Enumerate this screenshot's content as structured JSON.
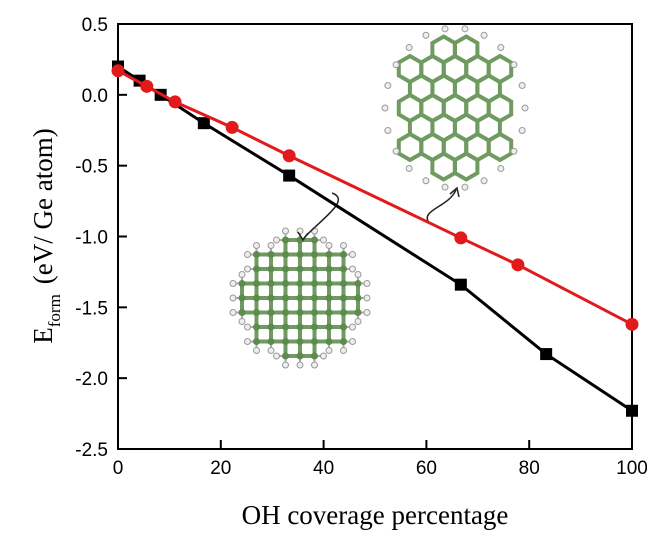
{
  "chart_data": {
    "type": "line",
    "xlabel": "OH coverage percentage",
    "ylabel": "E",
    "ylabel_sub": "form",
    "ylabel_unit": "(eV/ Ge atom)",
    "xlim": [
      0,
      100
    ],
    "xticks": [
      0,
      20,
      40,
      60,
      80,
      100
    ],
    "ylim": [
      -2.5,
      0.5
    ],
    "yticks": [
      -2.5,
      {
        "value": -2,
        "label": "-2.0"
      },
      -1.5,
      {
        "value": -1,
        "label": "-1.0"
      },
      -0.5,
      {
        "value": 0,
        "label": "0.0"
      },
      0.5
    ],
    "series": [
      {
        "color": "#000000",
        "marker": "square",
        "x": [
          0,
          4.2,
          8.3,
          16.7,
          33.3,
          66.7,
          83.3,
          100
        ],
        "values": [
          0.2,
          0.1,
          0.0,
          -0.2,
          -0.57,
          -1.34,
          -1.83,
          -2.23
        ]
      },
      {
        "color": "#e31a1c",
        "marker": "circle",
        "x": [
          0,
          5.6,
          11.1,
          22.2,
          33.3,
          66.7,
          77.8,
          100
        ],
        "values": [
          0.17,
          0.06,
          -0.05,
          -0.23,
          -0.43,
          -1.01,
          -1.2,
          -1.62
        ]
      }
    ]
  }
}
